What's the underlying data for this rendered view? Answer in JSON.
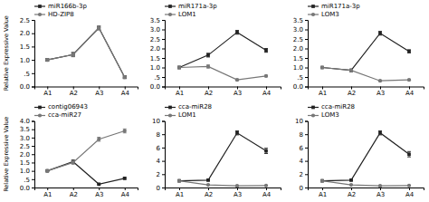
{
  "chart_data": [
    {
      "type": "line",
      "y_label": "Relative Expressive Value",
      "categories": [
        "A1",
        "A2",
        "A3",
        "A4"
      ],
      "ylim": [
        0.0,
        2.5
      ],
      "yticks": [
        {
          "value": 0.0,
          "label": "0.0"
        },
        {
          "value": 0.5,
          "label": ".5"
        },
        {
          "value": 1.0,
          "label": "1.0"
        },
        1.5,
        {
          "value": 2.0,
          "label": "2.0"
        },
        2.5
      ],
      "grid": false,
      "legend": "upper-left",
      "series": [
        {
          "name": "miR166b-3p",
          "color": "#222222",
          "marker": "square",
          "line_style": "solid",
          "values": [
            1.0,
            1.2,
            2.2,
            0.35
          ],
          "errors": [
            0.05,
            0.08,
            0.07,
            0.05
          ]
        },
        {
          "name": "HD-ZIP8",
          "color": "#777777",
          "marker": "circle",
          "line_style": "solid",
          "values": [
            1.0,
            1.2,
            2.2,
            0.35
          ],
          "errors": [
            0.05,
            0.08,
            0.07,
            0.05
          ]
        }
      ]
    },
    {
      "type": "line",
      "categories": [
        "A1",
        "A2",
        "A3",
        "A4"
      ],
      "ylim": [
        0.0,
        3.5
      ],
      "yticks": [
        {
          "value": 0.0,
          "label": "0.0"
        },
        {
          "value": 0.5,
          "label": ".5"
        },
        {
          "value": 1.0,
          "label": "1.0"
        },
        1.5,
        {
          "value": 2.0,
          "label": "2.0"
        },
        2.5,
        {
          "value": 3.0,
          "label": "3.0"
        },
        3.5
      ],
      "grid": false,
      "legend": "upper-left",
      "series": [
        {
          "name": "miR171a-3p",
          "color": "#222222",
          "marker": "square",
          "line_style": "solid",
          "values": [
            1.0,
            1.65,
            2.85,
            1.9
          ],
          "errors": [
            0.06,
            0.1,
            0.1,
            0.1
          ]
        },
        {
          "name": "LOM1",
          "color": "#777777",
          "marker": "circle",
          "line_style": "solid",
          "values": [
            1.0,
            1.05,
            0.35,
            0.55
          ],
          "errors": [
            0.06,
            0.08,
            0.04,
            0.04
          ]
        }
      ]
    },
    {
      "type": "line",
      "categories": [
        "A1",
        "A2",
        "A3",
        "A4"
      ],
      "ylim": [
        0.0,
        3.5
      ],
      "yticks": [
        {
          "value": 0.0,
          "label": "0.0"
        },
        {
          "value": 0.5,
          "label": ".5"
        },
        {
          "value": 1.0,
          "label": "1.0"
        },
        1.5,
        {
          "value": 2.0,
          "label": "2.0"
        },
        2.5,
        {
          "value": 3.0,
          "label": "3.0"
        },
        3.5
      ],
      "grid": false,
      "legend": "upper-left",
      "series": [
        {
          "name": "miR171a-3p",
          "color": "#222222",
          "marker": "square",
          "line_style": "solid",
          "values": [
            1.0,
            0.85,
            2.8,
            1.85
          ],
          "errors": [
            0.05,
            0.06,
            0.1,
            0.08
          ]
        },
        {
          "name": "LOM3",
          "color": "#777777",
          "marker": "circle",
          "line_style": "solid",
          "values": [
            1.0,
            0.85,
            0.3,
            0.35
          ],
          "errors": [
            0.05,
            0.05,
            0.03,
            0.03
          ]
        }
      ]
    },
    {
      "type": "line",
      "y_label": "Relative Expressive Value",
      "categories": [
        "A1",
        "A2",
        "A3",
        "A4"
      ],
      "ylim": [
        0.0,
        4.0
      ],
      "yticks": [
        {
          "value": 0.0,
          "label": "0.0"
        },
        {
          "value": 0.5,
          "label": ".5"
        },
        {
          "value": 1.0,
          "label": "1.0"
        },
        1.5,
        {
          "value": 2.0,
          "label": "2.0"
        },
        2.5,
        {
          "value": 3.0,
          "label": "3.0"
        },
        3.5,
        {
          "value": 4.0,
          "label": "4.0"
        }
      ],
      "grid": false,
      "legend": "upper-left",
      "series": [
        {
          "name": "contig06943",
          "color": "#222222",
          "marker": "square",
          "line_style": "solid",
          "values": [
            1.0,
            1.55,
            0.2,
            0.55
          ],
          "errors": [
            0.05,
            0.1,
            0.03,
            0.05
          ]
        },
        {
          "name": "cca-miR27",
          "color": "#777777",
          "marker": "circle",
          "line_style": "solid",
          "values": [
            1.0,
            1.5,
            2.9,
            3.4
          ],
          "errors": [
            0.05,
            0.1,
            0.12,
            0.12
          ]
        }
      ]
    },
    {
      "type": "line",
      "categories": [
        "A1",
        "A2",
        "A3",
        "A4"
      ],
      "ylim": [
        0.0,
        10.0
      ],
      "yticks": [
        0,
        2,
        4,
        6,
        8,
        10
      ],
      "grid": false,
      "legend": "upper-left",
      "series": [
        {
          "name": "cca-miR28",
          "color": "#222222",
          "marker": "square",
          "line_style": "solid",
          "values": [
            1.0,
            1.1,
            8.2,
            5.5
          ],
          "errors": [
            0.06,
            0.1,
            0.3,
            0.4
          ]
        },
        {
          "name": "LOM1",
          "color": "#777777",
          "marker": "circle",
          "line_style": "solid",
          "values": [
            1.0,
            0.4,
            0.25,
            0.3
          ],
          "errors": [
            0.05,
            0.05,
            0.03,
            0.03
          ]
        }
      ]
    },
    {
      "type": "line",
      "categories": [
        "A1",
        "A2",
        "A3",
        "A4"
      ],
      "ylim": [
        0.0,
        10.0
      ],
      "yticks": [
        0,
        2,
        4,
        6,
        8,
        10
      ],
      "grid": false,
      "legend": "upper-left",
      "series": [
        {
          "name": "cca-miR28",
          "color": "#222222",
          "marker": "square",
          "line_style": "solid",
          "values": [
            1.0,
            1.1,
            8.2,
            5.0
          ],
          "errors": [
            0.06,
            0.1,
            0.3,
            0.4
          ]
        },
        {
          "name": "LOM3",
          "color": "#777777",
          "marker": "circle",
          "line_style": "solid",
          "values": [
            1.0,
            0.4,
            0.25,
            0.3
          ],
          "errors": [
            0.05,
            0.05,
            0.03,
            0.03
          ]
        }
      ]
    }
  ]
}
